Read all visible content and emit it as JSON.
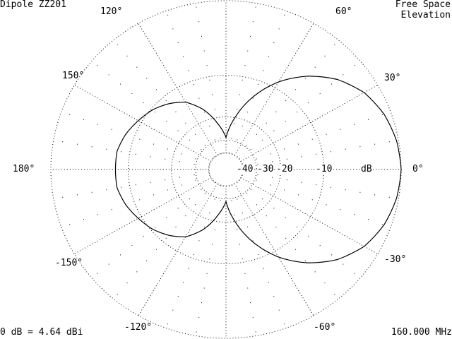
{
  "header": {
    "title": "Dipole ZZ201",
    "env_line1": "Free Space",
    "env_line2": "Elevation"
  },
  "footer": {
    "reference": "0 dB = 4.64 dBi",
    "frequency": "160.000 MHz"
  },
  "chart_data": {
    "type": "polar",
    "scale": "ARRL log",
    "angle_labels": [
      {
        "angle": 0,
        "text": "0°"
      },
      {
        "angle": 30,
        "text": "30°"
      },
      {
        "angle": 60,
        "text": "60°"
      },
      {
        "angle": 120,
        "text": "120°"
      },
      {
        "angle": 150,
        "text": "150°"
      },
      {
        "angle": 180,
        "text": "180°"
      },
      {
        "angle": -150,
        "text": "-150°"
      },
      {
        "angle": -120,
        "text": "-120°"
      },
      {
        "angle": -60,
        "text": "-60°"
      },
      {
        "angle": -30,
        "text": "-30°"
      }
    ],
    "ring_labels": [
      {
        "db": -40,
        "text": "-40"
      },
      {
        "db": -30,
        "text": "-30"
      },
      {
        "db": -20,
        "text": "-20"
      },
      {
        "db": -10,
        "text": "-10"
      },
      {
        "db": -3,
        "text": "dB"
      }
    ],
    "pattern": {
      "angles_deg": [
        0,
        10,
        20,
        30,
        40,
        50,
        60,
        70,
        80,
        90,
        100,
        110,
        120,
        130,
        140,
        150,
        160,
        170,
        180
      ],
      "gain_db": [
        0,
        -0.2,
        -0.7,
        -1.6,
        -3.2,
        -5.6,
        -8.8,
        -13.3,
        -19.6,
        -28.5,
        -22.0,
        -16.7,
        -13.3,
        -11.6,
        -10.3,
        -9.4,
        -8.5,
        -7.9,
        -7.9
      ],
      "symmetric": true
    },
    "colors": {
      "pattern": "#000000",
      "grid": "#000000",
      "background": "#ffffff"
    }
  }
}
